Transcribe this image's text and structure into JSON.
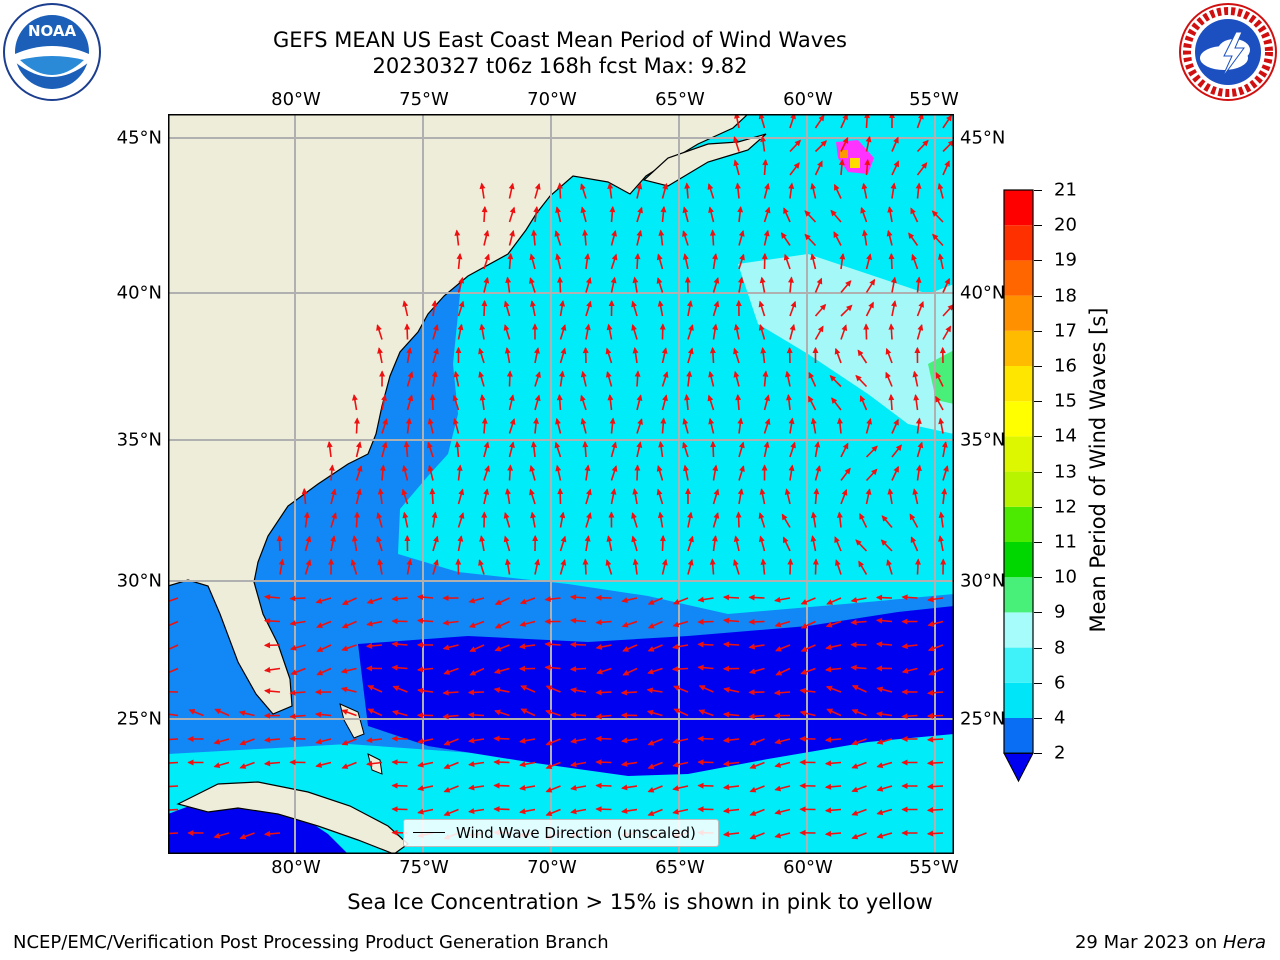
{
  "title_line1": "GEFS MEAN US East Coast Mean Period of Wind Waves",
  "title_line2": "20230327 t06z 168h fcst   Max: 9.82",
  "logos": {
    "left": "NOAA",
    "right": "NATIONAL WEATHER SERVICE"
  },
  "longitude_labels": [
    "80°W",
    "75°W",
    "70°W",
    "65°W",
    "60°W",
    "55°W"
  ],
  "latitude_labels": [
    "45°N",
    "40°N",
    "35°N",
    "30°N",
    "25°N"
  ],
  "colorbar": {
    "title": "Mean Period of Wind Waves [s]",
    "ticks": [
      "2",
      "4",
      "6",
      "8",
      "9",
      "10",
      "11",
      "12",
      "13",
      "14",
      "15",
      "16",
      "17",
      "18",
      "19",
      "20",
      "21"
    ],
    "colors": [
      "#0a6ef5",
      "#00e6f8",
      "#3ff2f9",
      "#a6fbfb",
      "#48f07a",
      "#00d600",
      "#4bea00",
      "#b8f400",
      "#ddf700",
      "#ffff00",
      "#ffe600",
      "#ffbb00",
      "#ff9000",
      "#ff6600",
      "#ff3000",
      "#ff0000"
    ],
    "under_color": "#0000f0"
  },
  "legend": {
    "label": "Wind Wave Direction (unscaled)"
  },
  "caption": "Sea Ice Concentration > 15% is shown in pink to yellow",
  "footer_left": "NCEP/EMC/Verification Post Processing Product Generation Branch",
  "footer_right_date": "29 Mar 2023 on ",
  "footer_right_host": "Hera",
  "map_colors": {
    "land": "#eeedda",
    "deep_blue": "#0000f0",
    "blue": "#1188f5",
    "cyan": "#00ecf8",
    "light_cyan": "#a4f8f8",
    "arrow": "#ee1111",
    "ice": "#ff33ff"
  },
  "map_data": {
    "max_period_s": 9.82,
    "lon_range": [
      "85°W",
      "54°W"
    ],
    "lat_range": [
      "20°N",
      "46°N"
    ]
  }
}
